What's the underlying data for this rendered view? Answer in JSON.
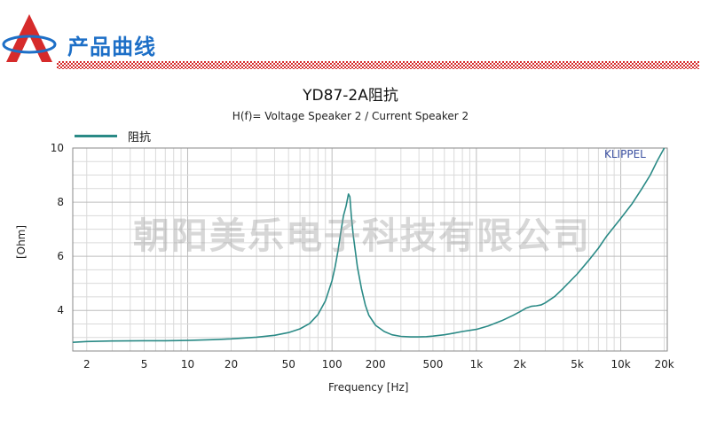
{
  "header": {
    "title": "产品曲线",
    "logo_icon": "triangle-logo-icon",
    "checker_color": "#d62b2b",
    "title_color": "#1d6fc7"
  },
  "watermark": "朝阳美乐电子科技有限公司",
  "brand": "KLIPPEL",
  "chart_data": {
    "type": "line",
    "title": "YD87-2A阻抗",
    "subtitle": "H(f)= Voltage Speaker 2 / Current Speaker 2",
    "xlabel": "Frequency [Hz]",
    "ylabel": "[Ohm]",
    "xscale": "log",
    "xlim": [
      1.6,
      21000
    ],
    "ylim": [
      2.5,
      10
    ],
    "x_ticks": [
      {
        "value": 2,
        "label": "2"
      },
      {
        "value": 5,
        "label": "5"
      },
      {
        "value": 10,
        "label": "10"
      },
      {
        "value": 20,
        "label": "20"
      },
      {
        "value": 50,
        "label": "50"
      },
      {
        "value": 100,
        "label": "100"
      },
      {
        "value": 200,
        "label": "200"
      },
      {
        "value": 500,
        "label": "500"
      },
      {
        "value": 1000,
        "label": "1k"
      },
      {
        "value": 2000,
        "label": "2k"
      },
      {
        "value": 5000,
        "label": "5k"
      },
      {
        "value": 10000,
        "label": "10k"
      },
      {
        "value": 20000,
        "label": "20k"
      }
    ],
    "y_ticks": [
      {
        "value": 4,
        "label": "4"
      },
      {
        "value": 6,
        "label": "6"
      },
      {
        "value": 8,
        "label": "8"
      },
      {
        "value": 10,
        "label": "10"
      }
    ],
    "grid": true,
    "legend": "top-left",
    "series": [
      {
        "name": "阻抗",
        "color": "#2a8a86",
        "x": [
          1.6,
          2,
          3,
          5,
          7,
          10,
          15,
          20,
          30,
          40,
          50,
          60,
          70,
          80,
          90,
          100,
          105,
          110,
          115,
          120,
          125,
          130,
          133,
          136,
          140,
          145,
          150,
          160,
          170,
          180,
          200,
          230,
          260,
          300,
          350,
          400,
          450,
          500,
          600,
          700,
          800,
          1000,
          1200,
          1500,
          1800,
          2000,
          2200,
          2400,
          2600,
          2800,
          3000,
          3500,
          4000,
          5000,
          6000,
          7000,
          8000,
          10000,
          12000,
          14000,
          16000,
          18000,
          20000
        ],
        "y": [
          2.82,
          2.85,
          2.87,
          2.88,
          2.88,
          2.89,
          2.92,
          2.95,
          3.01,
          3.08,
          3.18,
          3.32,
          3.52,
          3.85,
          4.35,
          5.1,
          5.6,
          6.2,
          6.9,
          7.5,
          7.85,
          8.3,
          8.2,
          7.5,
          6.8,
          6.2,
          5.6,
          4.8,
          4.2,
          3.82,
          3.45,
          3.22,
          3.1,
          3.04,
          3.02,
          3.02,
          3.03,
          3.05,
          3.1,
          3.16,
          3.22,
          3.3,
          3.42,
          3.62,
          3.82,
          3.95,
          4.08,
          4.15,
          4.17,
          4.2,
          4.28,
          4.52,
          4.82,
          5.35,
          5.85,
          6.3,
          6.75,
          7.4,
          7.95,
          8.5,
          9.0,
          9.55,
          10.0
        ]
      }
    ]
  }
}
